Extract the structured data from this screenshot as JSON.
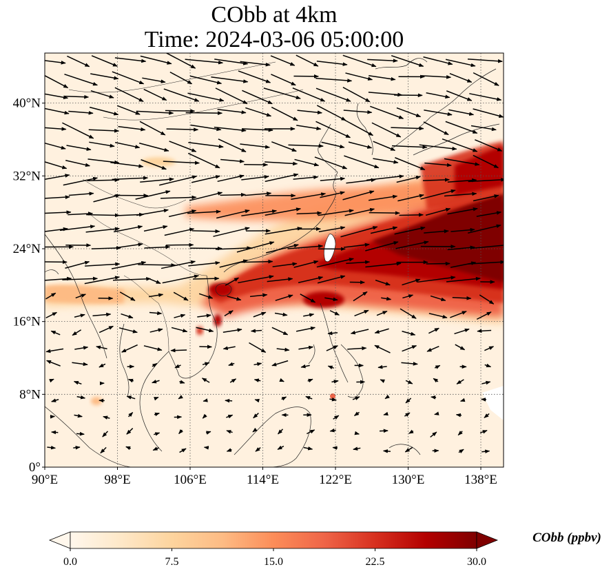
{
  "title": {
    "line1": "CObb at 4km",
    "line2": "Time: 2024-03-06 05:00:00"
  },
  "map": {
    "lon_range": [
      90,
      140.5
    ],
    "lat_range": [
      0,
      45.5
    ],
    "lon_ticks": [
      {
        "value": 90,
        "label": "90°E"
      },
      {
        "value": 98,
        "label": "98°E"
      },
      {
        "value": 106,
        "label": "106°E"
      },
      {
        "value": 114,
        "label": "114°E"
      },
      {
        "value": 122,
        "label": "122°E"
      },
      {
        "value": 130,
        "label": "130°E"
      },
      {
        "value": 138,
        "label": "138°E"
      }
    ],
    "lat_ticks": [
      {
        "value": 0,
        "label": "0°"
      },
      {
        "value": 8,
        "label": "8°N"
      },
      {
        "value": 16,
        "label": "16°N"
      },
      {
        "value": 24,
        "label": "24°N"
      },
      {
        "value": 32,
        "label": "32°N"
      },
      {
        "value": 40,
        "label": "40°N"
      }
    ],
    "gridlines": true,
    "field": "CObb concentration filled contours, plume of high values from Indochina/South China Sea eastward past Taiwan to 140°E",
    "vectors": "wind arrows, mostly westerly"
  },
  "colorbar": {
    "label": "CObb (ppbv)",
    "ticks": [
      "0.0",
      "7.5",
      "15.0",
      "22.5",
      "30.0"
    ],
    "range": [
      0,
      30
    ],
    "colors": [
      "#fff7ec",
      "#fee8c8",
      "#fdd49e",
      "#fdbb84",
      "#fc8d59",
      "#ef6548",
      "#d7301f",
      "#b30000",
      "#7f0000"
    ]
  }
}
